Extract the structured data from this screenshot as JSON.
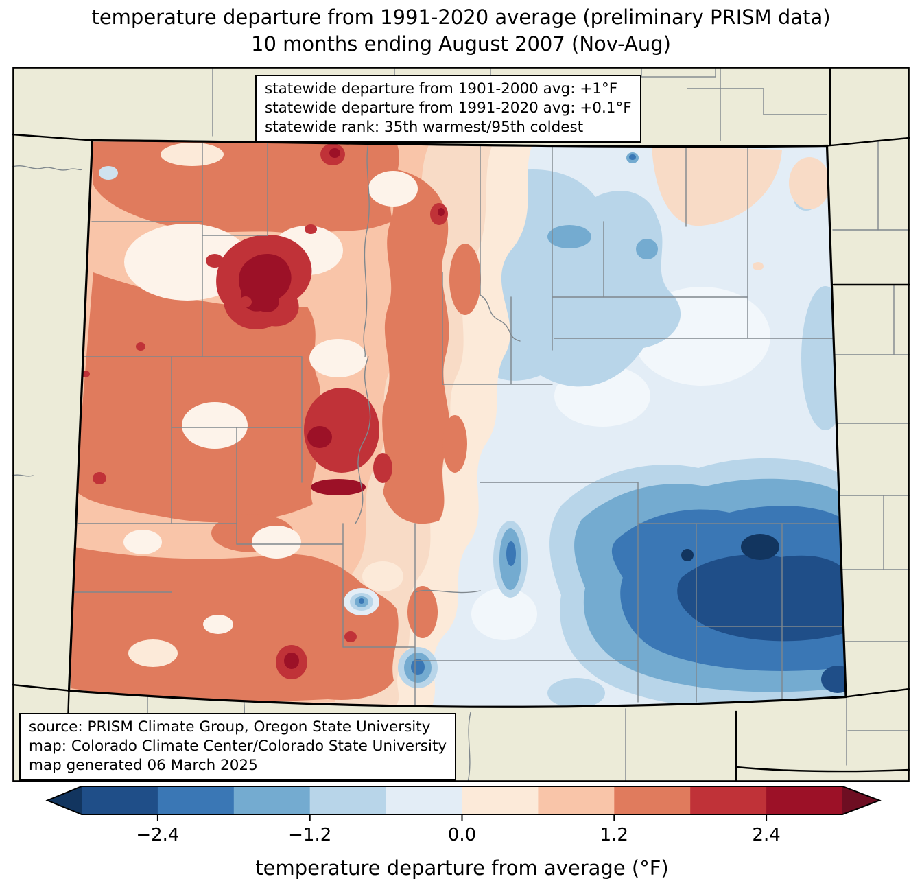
{
  "title": {
    "line1": "temperature departure from 1991-2020 average (preliminary PRISM data)",
    "line2": "10 months ending August 2007 (Nov-Aug)"
  },
  "stats_box": {
    "line1": "statewide departure from 1901-2000 avg: +1°F",
    "line2": "statewide departure from 1991-2020 avg: +0.1°F",
    "line3": "statewide rank: 35th warmest/95th coldest"
  },
  "credits_box": {
    "line1": "source: PRISM Climate Group, Oregon State University",
    "line2": "map: Colorado Climate Center/Colorado State University",
    "line3": "map generated 06 March 2025"
  },
  "colorbar": {
    "label": "temperature departure from average (°F)",
    "range": [
      -3.0,
      3.0
    ],
    "tick_values": [
      -2.4,
      -1.2,
      0.0,
      1.2,
      2.4
    ],
    "ticks": [
      "−2.4",
      "−1.2",
      "0.0",
      "1.2",
      "2.4"
    ],
    "under_color": "#12355f",
    "over_color": "#6e0e22",
    "outline_color": "#000000",
    "segments": [
      {
        "from": -3.0,
        "to": -2.4,
        "color": "#1f4e88"
      },
      {
        "from": -2.4,
        "to": -1.8,
        "color": "#3a77b5"
      },
      {
        "from": -1.8,
        "to": -1.2,
        "color": "#74abd0"
      },
      {
        "from": -1.2,
        "to": -0.6,
        "color": "#b8d5e9"
      },
      {
        "from": -0.6,
        "to": 0.0,
        "color": "#e3edf6"
      },
      {
        "from": 0.0,
        "to": 0.6,
        "color": "#fcead9"
      },
      {
        "from": 0.6,
        "to": 1.2,
        "color": "#f9c5a9"
      },
      {
        "from": 1.2,
        "to": 1.8,
        "color": "#e07b5d"
      },
      {
        "from": 1.8,
        "to": 2.4,
        "color": "#c03238"
      },
      {
        "from": 2.4,
        "to": 3.0,
        "color": "#9c1127"
      }
    ]
  },
  "map": {
    "background_color": "#ecebd8",
    "county_line_color": "#7f878d",
    "state_line_color": "#000000",
    "frame_color": "#000000",
    "extra_tints": {
      "pink": "#f8dbc6",
      "warmwhite": "#fdf3ea",
      "coolwhite": "#f2f7fb",
      "bluedot": "#cfe2ef"
    }
  }
}
